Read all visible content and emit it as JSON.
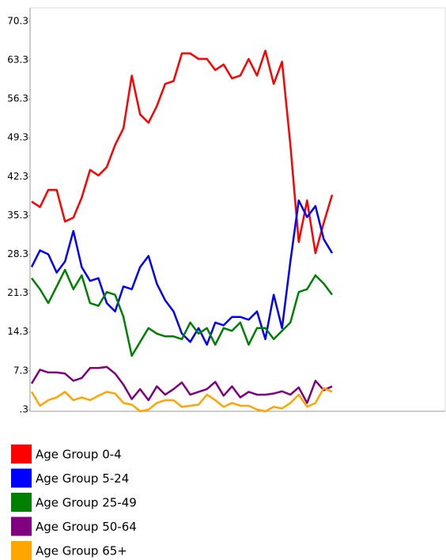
{
  "chart_data": {
    "type": "line",
    "categories": [
      null,
      null,
      null,
      null,
      null,
      null,
      null,
      null,
      null,
      null,
      null,
      null,
      null,
      null,
      null,
      null,
      null,
      null,
      null,
      null,
      null,
      null,
      null,
      null,
      null,
      null,
      null,
      null,
      null,
      null,
      null,
      null,
      null,
      null,
      null,
      null,
      null
    ],
    "ylim": [
      0,
      72.7
    ],
    "yticks": [
      {
        "value": 0.3,
        "label": ".3"
      },
      7.3,
      14.3,
      21.3,
      28.3,
      35.3,
      42.3,
      49.3,
      56.3,
      63.3,
      70.3
    ],
    "grid": false,
    "legend": "bottom",
    "series": [
      {
        "name": "Age Group 0-4",
        "color": "#ff0000",
        "values": [
          37.8,
          36.8,
          39.9,
          39.9,
          34.2,
          34.9,
          38.5,
          43.5,
          42.5,
          44,
          48,
          51,
          60.5,
          53.5,
          52,
          55,
          59,
          59.5,
          64.5,
          64.5,
          63.5,
          63.5,
          61.5,
          62.5,
          60,
          60.5,
          63.5,
          60.5,
          65,
          59,
          63,
          48,
          30.5,
          38,
          28.5,
          34,
          39
        ]
      },
      {
        "name": "Age Group 5-24",
        "color": "#0000ff",
        "values": [
          26,
          29,
          28.3,
          25,
          27,
          32.5,
          26,
          23.5,
          24,
          19.5,
          18,
          22.5,
          22,
          26,
          28,
          23,
          20,
          18,
          14,
          12.5,
          15,
          12,
          16,
          15.5,
          17,
          17,
          16.5,
          18,
          13,
          21,
          15,
          27,
          38,
          35,
          37,
          31,
          28.5
        ]
      },
      {
        "name": "Age Group 25-49",
        "color": "#008000",
        "values": [
          24,
          22,
          19.5,
          22.5,
          25.5,
          22,
          24.5,
          19.5,
          19,
          21.5,
          21,
          17,
          10,
          12.5,
          15,
          14,
          13.5,
          13.5,
          13,
          16,
          14,
          15,
          12,
          15,
          14.5,
          16,
          12,
          15,
          15,
          13,
          14.5,
          16,
          21.5,
          22,
          24.5,
          23,
          21
        ]
      },
      {
        "name": "Age Group 50-64",
        "color": "#800080",
        "values": [
          5,
          7.5,
          7,
          7,
          6.8,
          5.5,
          6,
          7.8,
          7.8,
          8,
          6.8,
          4.8,
          2.2,
          4,
          2,
          4.5,
          3,
          4,
          5.2,
          3,
          3.5,
          4,
          5.3,
          2.8,
          4.5,
          2.5,
          3.5,
          3,
          3,
          3.2,
          3.6,
          3,
          4.3,
          1.5,
          5.5,
          3.8,
          4.5
        ]
      },
      {
        "name": "Age Group 65+",
        "color": "#ffa500",
        "values": [
          3.5,
          1,
          2,
          2.5,
          3.5,
          2,
          2.5,
          2,
          2.8,
          3.5,
          3.2,
          1.5,
          1.2,
          0,
          0.3,
          1.5,
          2,
          2,
          0.8,
          1,
          1.2,
          3,
          2,
          0.8,
          1.5,
          1,
          1,
          0.3,
          0,
          0.8,
          0.5,
          1.5,
          3,
          0.8,
          1.5,
          4.2,
          3.5
        ]
      }
    ]
  }
}
